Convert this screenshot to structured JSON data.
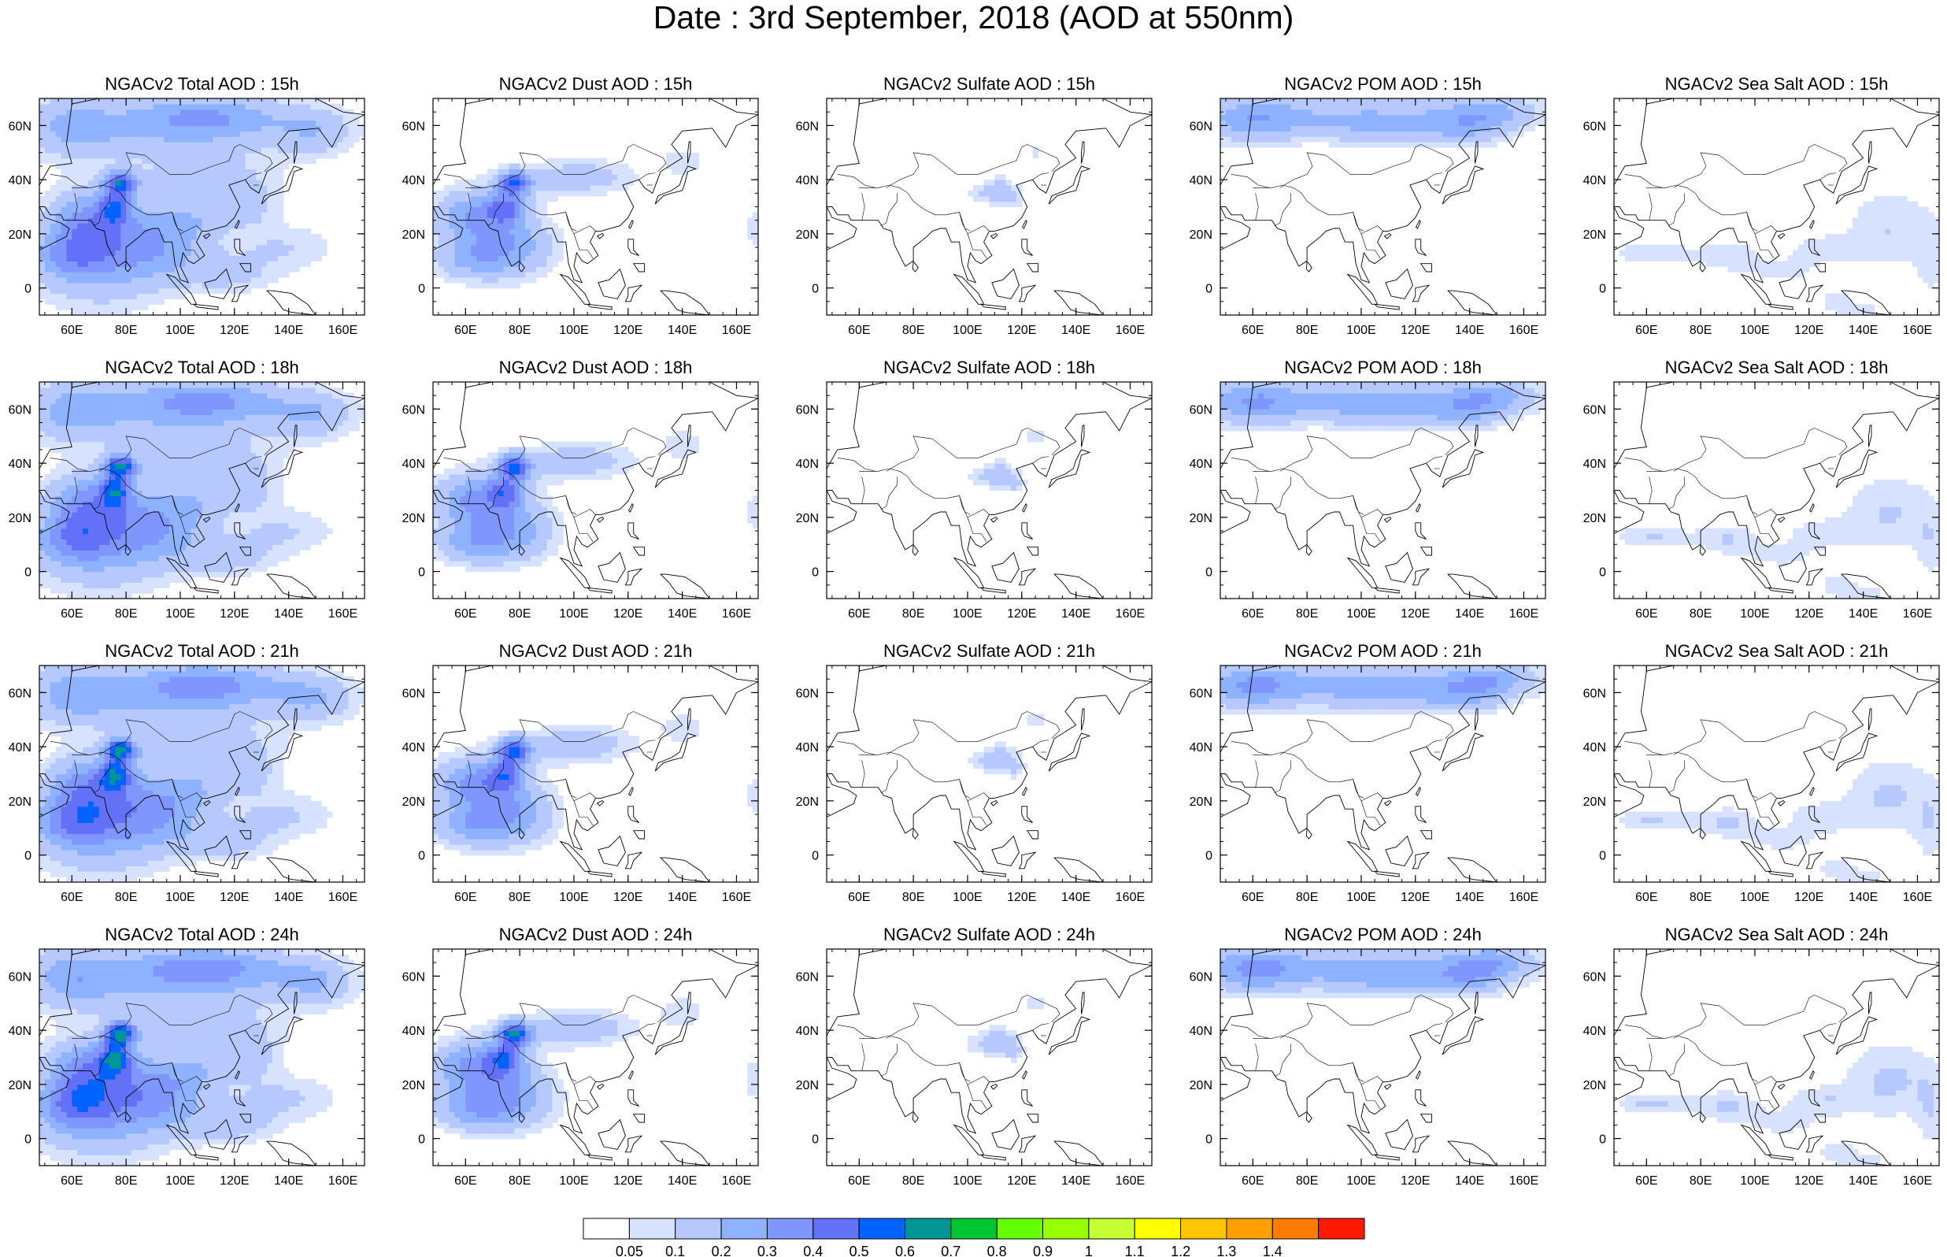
{
  "title": "Date : 3rd September, 2018 (AOD at 550nm)",
  "map": {
    "lon_range": [
      48,
      168
    ],
    "lat_range": [
      -10,
      70
    ],
    "x_ticks": [
      "60E",
      "80E",
      "100E",
      "120E",
      "140E",
      "160E"
    ],
    "x_tick_values": [
      60,
      80,
      100,
      120,
      140,
      160
    ],
    "y_ticks": [
      "0",
      "20N",
      "40N",
      "60N"
    ],
    "y_tick_values": [
      0,
      20,
      40,
      60
    ]
  },
  "panels": [
    {
      "title": "NGACv2 Total AOD : 15h",
      "species": "total",
      "hour": 15
    },
    {
      "title": "NGACv2 Dust AOD : 15h",
      "species": "dust",
      "hour": 15
    },
    {
      "title": "NGACv2 Sulfate AOD : 15h",
      "species": "sulfate",
      "hour": 15
    },
    {
      "title": "NGACv2 POM AOD : 15h",
      "species": "pom",
      "hour": 15
    },
    {
      "title": "NGACv2 Sea Salt AOD : 15h",
      "species": "seasalt",
      "hour": 15
    },
    {
      "title": "NGACv2 Total AOD : 18h",
      "species": "total",
      "hour": 18
    },
    {
      "title": "NGACv2 Dust AOD : 18h",
      "species": "dust",
      "hour": 18
    },
    {
      "title": "NGACv2 Sulfate AOD : 18h",
      "species": "sulfate",
      "hour": 18
    },
    {
      "title": "NGACv2 POM AOD : 18h",
      "species": "pom",
      "hour": 18
    },
    {
      "title": "NGACv2 Sea Salt AOD : 18h",
      "species": "seasalt",
      "hour": 18
    },
    {
      "title": "NGACv2 Total AOD : 21h",
      "species": "total",
      "hour": 21
    },
    {
      "title": "NGACv2 Dust AOD : 21h",
      "species": "dust",
      "hour": 21
    },
    {
      "title": "NGACv2 Sulfate AOD : 21h",
      "species": "sulfate",
      "hour": 21
    },
    {
      "title": "NGACv2 POM AOD : 21h",
      "species": "pom",
      "hour": 21
    },
    {
      "title": "NGACv2 Sea Salt AOD : 21h",
      "species": "seasalt",
      "hour": 21
    },
    {
      "title": "NGACv2 Total AOD : 24h",
      "species": "total",
      "hour": 24
    },
    {
      "title": "NGACv2 Dust AOD : 24h",
      "species": "dust",
      "hour": 24
    },
    {
      "title": "NGACv2 Sulfate AOD : 24h",
      "species": "sulfate",
      "hour": 24
    },
    {
      "title": "NGACv2 POM AOD : 24h",
      "species": "pom",
      "hour": 24
    },
    {
      "title": "NGACv2 Sea Salt  AOD : 24h",
      "species": "seasalt",
      "hour": 24
    }
  ],
  "colorbar": {
    "labels": [
      "0.05",
      "0.1",
      "0.2",
      "0.3",
      "0.4",
      "0.5",
      "0.6",
      "0.7",
      "0.8",
      "0.9",
      "1",
      "1.1",
      "1.2",
      "1.3",
      "1.4"
    ],
    "colors": [
      "#ffffff",
      "#d6e2ff",
      "#b5c9ff",
      "#8eb2ff",
      "#7f96ff",
      "#6370f8",
      "#0063ff",
      "#009696",
      "#00c633",
      "#63ff00",
      "#96ff00",
      "#c6ff33",
      "#ffff00",
      "#ffc600",
      "#ffa000",
      "#ff7c00",
      "#ff1900"
    ]
  }
}
